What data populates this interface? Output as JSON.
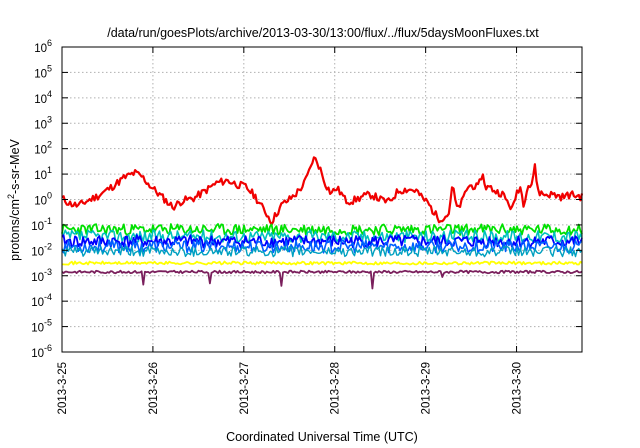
{
  "chart_data": {
    "type": "line",
    "title": "/data/run/goesPlots/archive/2013-03-30/13:00/flux/../flux/5daysMoonFluxes.txt",
    "xlabel": "Coordinated Universal Time (UTC)",
    "ylabel_parts": {
      "before": "protons/cm",
      "sup": "2",
      "after": "-s-sr-MeV"
    },
    "x_range_days": [
      0,
      5.72
    ],
    "x_ticks": [
      {
        "day": 0,
        "label": "2013-3-25"
      },
      {
        "day": 1,
        "label": "2013-3-26"
      },
      {
        "day": 2,
        "label": "2013-3-27"
      },
      {
        "day": 3,
        "label": "2013-3-28"
      },
      {
        "day": 4,
        "label": "2013-3-29"
      },
      {
        "day": 5,
        "label": "2013-3-30"
      }
    ],
    "y_scale": "log",
    "y_range_exp": [
      -6,
      6
    ],
    "y_ticks": [
      {
        "exp": 6,
        "base": "10",
        "sup": "6"
      },
      {
        "exp": 5,
        "base": "10",
        "sup": "5"
      },
      {
        "exp": 4,
        "base": "10",
        "sup": "4"
      },
      {
        "exp": 3,
        "base": "10",
        "sup": "3"
      },
      {
        "exp": 2,
        "base": "10",
        "sup": "2"
      },
      {
        "exp": 1,
        "base": "10",
        "sup": "1"
      },
      {
        "exp": 0,
        "base": "10",
        "sup": "0"
      },
      {
        "exp": -1,
        "base": "10",
        "sup": "-1"
      },
      {
        "exp": -2,
        "base": "10",
        "sup": "-2"
      },
      {
        "exp": -3,
        "base": "10",
        "sup": "-3"
      },
      {
        "exp": -4,
        "base": "10",
        "sup": "-4"
      },
      {
        "exp": -5,
        "base": "10",
        "sup": "-5"
      },
      {
        "exp": -6,
        "base": "10",
        "sup": "-6"
      }
    ],
    "grid": true,
    "series": [
      {
        "color": "#f00000",
        "log_baseline": 0.05,
        "noise": 0.15,
        "seed": 11,
        "hwidth": 2.2,
        "points": [
          [
            0,
            0.05
          ],
          [
            0.08,
            -0.15
          ],
          [
            0.18,
            -0.25
          ],
          [
            0.28,
            -0.05
          ],
          [
            0.4,
            0.15
          ],
          [
            0.55,
            0.5
          ],
          [
            0.68,
            0.85
          ],
          [
            0.8,
            1.05
          ],
          [
            0.88,
            0.9
          ],
          [
            0.98,
            0.5
          ],
          [
            1.1,
            0.1
          ],
          [
            1.22,
            -0.3
          ],
          [
            1.32,
            -0.05
          ],
          [
            1.45,
            0.05
          ],
          [
            1.58,
            0.35
          ],
          [
            1.7,
            0.65
          ],
          [
            1.82,
            0.75
          ],
          [
            1.92,
            0.6
          ],
          [
            2.02,
            0.5
          ],
          [
            2.12,
            0.15
          ],
          [
            2.2,
            -0.3
          ],
          [
            2.26,
            -0.6
          ],
          [
            2.3,
            -0.9
          ],
          [
            2.36,
            -0.55
          ],
          [
            2.42,
            -0.2
          ],
          [
            2.5,
            0.0
          ],
          [
            2.58,
            0.25
          ],
          [
            2.66,
            0.6
          ],
          [
            2.72,
            1.1
          ],
          [
            2.76,
            1.6
          ],
          [
            2.8,
            1.55
          ],
          [
            2.84,
            1.2
          ],
          [
            2.9,
            0.6
          ],
          [
            2.96,
            0.25
          ],
          [
            3.02,
            0.45
          ],
          [
            3.08,
            0.2
          ],
          [
            3.12,
            -0.05
          ],
          [
            3.2,
            -0.05
          ],
          [
            3.3,
            0.1
          ],
          [
            3.4,
            0.2
          ],
          [
            3.5,
            0.0
          ],
          [
            3.6,
            -0.1
          ],
          [
            3.7,
            0.35
          ],
          [
            3.8,
            0.4
          ],
          [
            3.9,
            0.35
          ],
          [
            3.96,
            0.05
          ],
          [
            4.02,
            -0.1
          ],
          [
            4.08,
            -0.45
          ],
          [
            4.14,
            -0.75
          ],
          [
            4.2,
            -0.7
          ],
          [
            4.25,
            -0.6
          ],
          [
            4.3,
            0.6
          ],
          [
            4.34,
            -0.4
          ],
          [
            4.4,
            -0.1
          ],
          [
            4.46,
            0.5
          ],
          [
            4.52,
            0.55
          ],
          [
            4.58,
            0.45
          ],
          [
            4.62,
            1.05
          ],
          [
            4.66,
            0.5
          ],
          [
            4.72,
            0.45
          ],
          [
            4.78,
            0.3
          ],
          [
            4.84,
            0.25
          ],
          [
            4.9,
            -0.1
          ],
          [
            4.96,
            -0.4
          ],
          [
            5.0,
            0.3
          ],
          [
            5.04,
            0.5
          ],
          [
            5.08,
            -0.2
          ],
          [
            5.12,
            0.6
          ],
          [
            5.16,
            0.5
          ],
          [
            5.2,
            1.3
          ],
          [
            5.24,
            0.3
          ],
          [
            5.3,
            0.2
          ],
          [
            5.4,
            0.2
          ],
          [
            5.5,
            0.1
          ],
          [
            5.6,
            0.2
          ],
          [
            5.72,
            0.1
          ]
        ]
      },
      {
        "color": "#00e000",
        "log_baseline": -1.18,
        "noise": 0.22,
        "seed": 23,
        "hwidth": 1.8
      },
      {
        "color": "#00c0c0",
        "log_baseline": -1.45,
        "noise": 0.25,
        "seed": 37,
        "hwidth": 1.6
      },
      {
        "color": "#0000ff",
        "log_baseline": -1.65,
        "noise": 0.25,
        "seed": 41,
        "hwidth": 1.8
      },
      {
        "color": "#0060ff",
        "log_baseline": -1.85,
        "noise": 0.25,
        "seed": 53,
        "hwidth": 1.6
      },
      {
        "color": "#00a0c0",
        "log_baseline": -2.05,
        "noise": 0.2,
        "seed": 61,
        "hwidth": 1.4
      },
      {
        "color": "#ffff00",
        "log_baseline": -2.5,
        "noise": 0.06,
        "seed": 71,
        "hwidth": 1.8
      },
      {
        "color": "#7a1f5c",
        "log_baseline": -2.85,
        "noise": 0.05,
        "seed": 83,
        "hwidth": 1.8,
        "spikes": [
          [
            0.9,
            -3.35
          ],
          [
            1.62,
            -3.3
          ],
          [
            2.42,
            -3.4
          ],
          [
            3.42,
            -3.5
          ],
          [
            4.18,
            -3.05
          ]
        ]
      }
    ]
  }
}
